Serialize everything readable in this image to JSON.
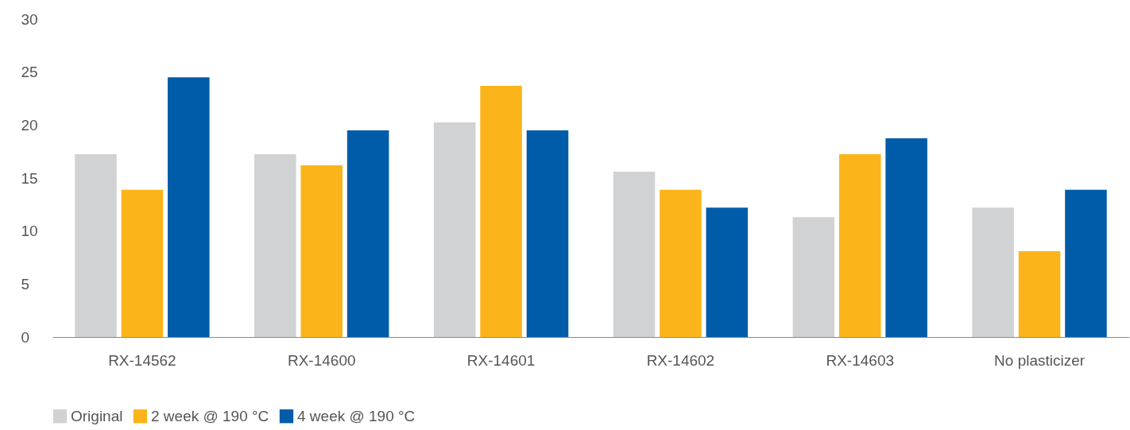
{
  "chart_data": {
    "type": "bar",
    "categories": [
      "RX-14562",
      "RX-14600",
      "RX-14601",
      "RX-14602",
      "RX-14603",
      "No plasticizer"
    ],
    "series": [
      {
        "name": "Original",
        "color": "#d1d2d4",
        "values": [
          17.25,
          17.25,
          20.25,
          15.6,
          11.3,
          12.2
        ]
      },
      {
        "name": "2 week @ 190 °C",
        "color": "#fbb51a",
        "values": [
          13.9,
          16.2,
          23.7,
          13.9,
          17.25,
          8.1
        ]
      },
      {
        "name": "4 week @ 190 °C",
        "color": "#005ca9",
        "values": [
          24.5,
          19.5,
          19.5,
          12.2,
          18.75,
          13.9
        ]
      }
    ],
    "ylim": [
      0,
      30
    ],
    "yticks": [
      0,
      5,
      10,
      15,
      20,
      25,
      30
    ],
    "grid": false,
    "legend": "bottom left"
  }
}
